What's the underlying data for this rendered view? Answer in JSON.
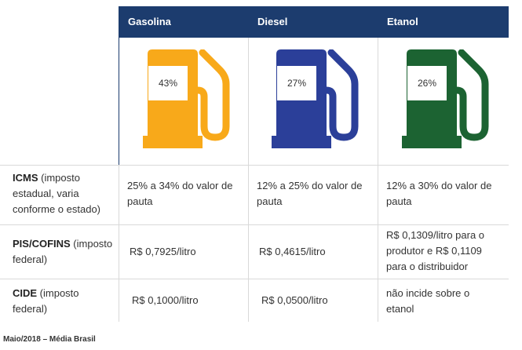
{
  "columns": [
    {
      "label": "Gasolina",
      "percent": "43%",
      "color": "#f8a91a"
    },
    {
      "label": "Diesel",
      "percent": "27%",
      "color": "#2b3f99"
    },
    {
      "label": "Etanol",
      "percent": "26%",
      "color": "#1c6332"
    }
  ],
  "rows": [
    {
      "name": "ICMS",
      "desc": " (imposto estadual, varia conforme o estado)",
      "values": [
        "25% a 34% do valor de pauta",
        "12% a 25% do valor de pauta",
        "12% a 30% do valor de pauta"
      ]
    },
    {
      "name": "PIS/COFINS",
      "desc": " (imposto federal)",
      "values": [
        "R$ 0,7925/litro",
        "R$ 0,4615/litro",
        "R$ 0,1309/litro para o produtor e R$ 0,1109 para o distribuidor"
      ]
    },
    {
      "name": "CIDE",
      "desc": " (imposto federal)",
      "values": [
        "R$ 0,1000/litro",
        "R$ 0,0500/litro",
        "não incide sobre o etanol"
      ]
    }
  ],
  "footer": "Maio/2018 – Média Brasil",
  "icon": "fuel-pump-icon"
}
